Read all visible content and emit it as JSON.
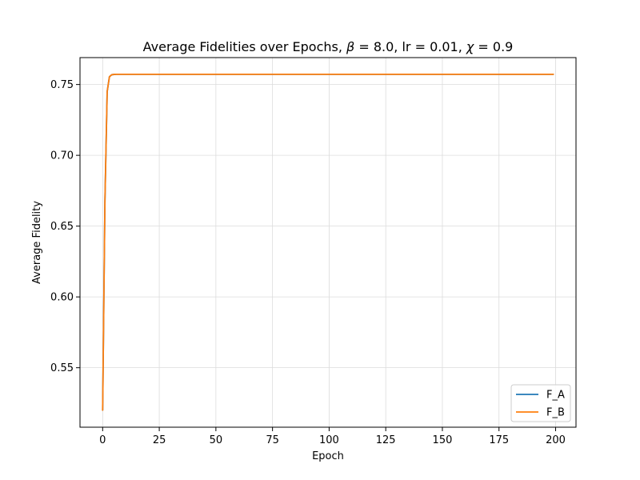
{
  "chart_data": {
    "type": "line",
    "title": "Average Fidelities over Epochs, β = 8.0, lr = 0.01, χ = 0.9",
    "title_parts": {
      "prefix": "Average Fidelities over Epochs, ",
      "beta_symbol": "β",
      "beta_rest": " = 8.0, lr = 0.01, ",
      "chi_symbol": "χ",
      "chi_rest": " = 0.9"
    },
    "xlabel": "Epoch",
    "ylabel": "Average Fidelity",
    "xlim": [
      -10,
      209
    ],
    "ylim": [
      0.508,
      0.769
    ],
    "xticks": [
      0,
      25,
      50,
      75,
      100,
      125,
      150,
      175,
      200
    ],
    "yticks": [
      0.55,
      0.6,
      0.65,
      0.7,
      0.75
    ],
    "ytick_labels": [
      "0.55",
      "0.60",
      "0.65",
      "0.70",
      "0.75"
    ],
    "grid": true,
    "legend_position": "lower-right",
    "series": [
      {
        "name": "F_A",
        "color": "#1f77b4",
        "x": [
          0,
          1,
          2,
          3,
          4,
          5,
          6,
          7,
          8,
          10,
          15,
          20,
          30,
          50,
          75,
          100,
          125,
          150,
          175,
          199
        ],
        "y": [
          0.52,
          0.667,
          0.745,
          0.7555,
          0.7569,
          0.7571,
          0.7572,
          0.7572,
          0.7572,
          0.7572,
          0.7572,
          0.7572,
          0.7572,
          0.7572,
          0.7572,
          0.7572,
          0.7572,
          0.7572,
          0.7572,
          0.7572
        ]
      },
      {
        "name": "F_B",
        "color": "#ff7f0e",
        "x": [
          0,
          1,
          2,
          3,
          4,
          5,
          6,
          7,
          8,
          10,
          15,
          20,
          30,
          50,
          75,
          100,
          125,
          150,
          175,
          199
        ],
        "y": [
          0.52,
          0.667,
          0.745,
          0.7555,
          0.7569,
          0.7571,
          0.7572,
          0.7572,
          0.7572,
          0.7572,
          0.7572,
          0.7572,
          0.7572,
          0.7572,
          0.7572,
          0.7572,
          0.7572,
          0.7572,
          0.7572,
          0.7572
        ]
      }
    ]
  }
}
